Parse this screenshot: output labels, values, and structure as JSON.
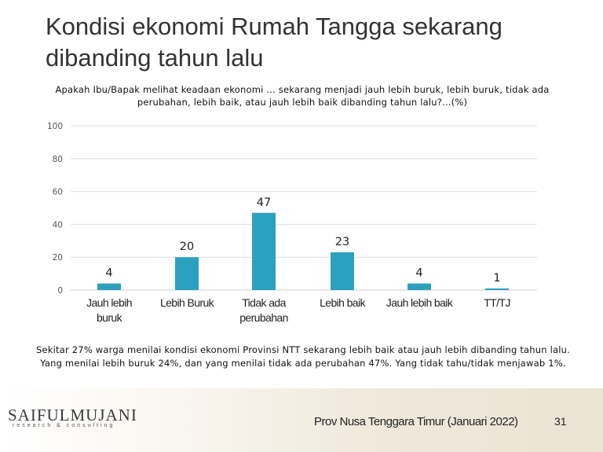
{
  "slide": {
    "title": "Kondisi ekonomi Rumah Tangga sekarang dibanding tahun lalu",
    "question": "Apakah Ibu/Bapak melihat keadaan ekonomi ... sekarang menjadi jauh lebih buruk, lebih buruk, tidak ada perubahan, lebih baik, atau jauh lebih baik dibanding tahun lalu?...(%)",
    "note": "Sekitar 27% warga menilai kondisi ekonomi Provinsi NTT sekarang lebih baik atau jauh lebih dibanding tahun lalu. Yang menilai lebih buruk 24%, dan yang menilai tidak ada perubahan 47%. Yang tidak tahu/tidak menjawab 1%."
  },
  "footer": {
    "logo": "SAIFULMUJANI",
    "logo_sub": "research & consulting",
    "source": "Prov Nusa Tenggara Timur (Januari 2022)",
    "page": "31"
  },
  "chart_data": {
    "type": "bar",
    "categories": [
      "Jauh lebih buruk",
      "Lebih Buruk",
      "Tidak ada perubahan",
      "Lebih baik",
      "Jauh lebih baik",
      "TT/TJ"
    ],
    "category_lines": [
      [
        "Jauh lebih",
        "buruk"
      ],
      [
        "Lebih Buruk"
      ],
      [
        "Tidak ada",
        "perubahan"
      ],
      [
        "Lebih baik"
      ],
      [
        "Jauh lebih baik"
      ],
      [
        "TT/TJ"
      ]
    ],
    "values": [
      4,
      20,
      47,
      23,
      4,
      1
    ],
    "ylim": [
      0,
      100
    ],
    "yticks": [
      0,
      20,
      40,
      60,
      80,
      100
    ],
    "grid": true,
    "bar_color": "#2ca1bf"
  }
}
